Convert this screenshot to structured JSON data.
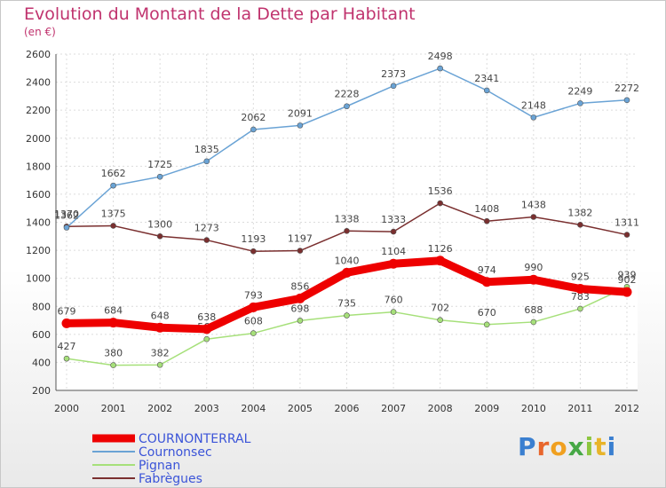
{
  "title": "Evolution du Montant de la Dette par Habitant",
  "subtitle": "(en €)",
  "logo_text": "Proxiti",
  "chart_data": {
    "type": "line",
    "title": "Evolution du Montant de la Dette par Habitant",
    "subtitle": "(en €)",
    "xlabel": "",
    "ylabel": "",
    "x": [
      "2000",
      "2001",
      "2002",
      "2003",
      "2004",
      "2005",
      "2006",
      "2007",
      "2008",
      "2009",
      "2010",
      "2011",
      "2012"
    ],
    "ylim": [
      200,
      2600
    ],
    "yticks": [
      200,
      400,
      600,
      800,
      1000,
      1200,
      1400,
      1600,
      1800,
      2000,
      2200,
      2400,
      2600
    ],
    "grid": true,
    "legend_position": "bottom-left",
    "series": [
      {
        "name": "COURNONTERRAL",
        "color": "#ee0000",
        "values": [
          679,
          684,
          648,
          638,
          793,
          856,
          1040,
          1104,
          1126,
          974,
          990,
          925,
          902
        ]
      },
      {
        "name": "Cournonsec",
        "color": "#6aa3d5",
        "values": [
          1362,
          1662,
          1725,
          1835,
          2062,
          2091,
          2228,
          2373,
          2498,
          2341,
          2148,
          2249,
          2272
        ]
      },
      {
        "name": "Pignan",
        "color": "#a6e07a",
        "values": [
          427,
          380,
          382,
          566,
          608,
          698,
          735,
          760,
          702,
          670,
          688,
          783,
          939
        ]
      },
      {
        "name": "Fabrègues",
        "color": "#7a2f2f",
        "values": [
          1370,
          1375,
          1300,
          1273,
          1193,
          1197,
          1338,
          1333,
          1536,
          1408,
          1438,
          1382,
          1311
        ]
      }
    ]
  }
}
